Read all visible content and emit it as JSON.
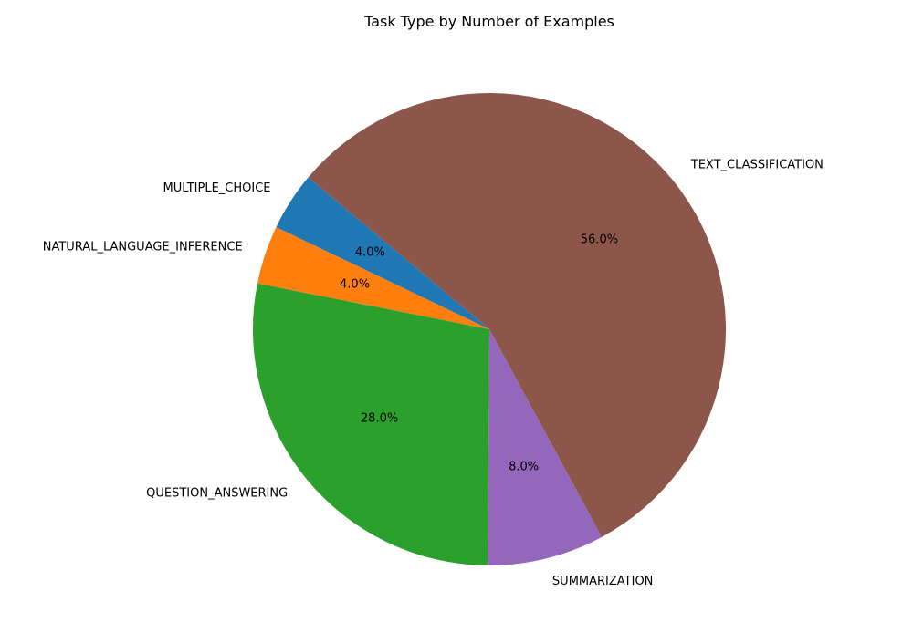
{
  "chart_data": {
    "type": "pie",
    "title": "Task Type by Number of Examples",
    "categories": [
      "MULTIPLE_CHOICE",
      "NATURAL_LANGUAGE_INFERENCE",
      "QUESTION_ANSWERING",
      "SUMMARIZATION",
      "TEXT_CLASSIFICATION"
    ],
    "values": [
      4.0,
      4.0,
      28.0,
      8.0,
      56.0
    ],
    "value_labels": [
      "4.0%",
      "4.0%",
      "28.0%",
      "8.0%",
      "56.0%"
    ],
    "colors": [
      "#1f77b4",
      "#ff7f0e",
      "#2ca02c",
      "#9467bd",
      "#8c564b"
    ],
    "start_angle_deg": 140,
    "direction": "counterclockwise",
    "legend": "none"
  }
}
